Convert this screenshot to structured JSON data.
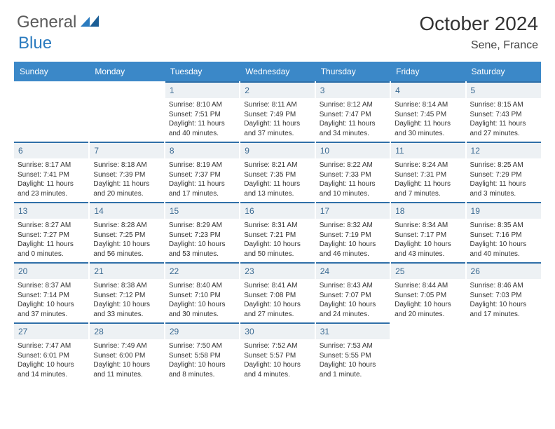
{
  "brand": {
    "word1": "General",
    "word2": "Blue"
  },
  "title": "October 2024",
  "location": "Sene, France",
  "colors": {
    "header_bg": "#3b88c8",
    "header_text": "#ffffff",
    "date_bg": "#edf1f4",
    "date_text": "#3b6a92",
    "date_border_top": "#2f6fa8",
    "body_text": "#333333",
    "logo_gray": "#5b5b5b",
    "logo_blue": "#2b7bbf"
  },
  "day_headers": [
    "Sunday",
    "Monday",
    "Tuesday",
    "Wednesday",
    "Thursday",
    "Friday",
    "Saturday"
  ],
  "weeks": [
    [
      {
        "empty": true
      },
      {
        "empty": true
      },
      {
        "date": "1",
        "sunrise": "8:10 AM",
        "sunset": "7:51 PM",
        "daylight": "11 hours and 40 minutes."
      },
      {
        "date": "2",
        "sunrise": "8:11 AM",
        "sunset": "7:49 PM",
        "daylight": "11 hours and 37 minutes."
      },
      {
        "date": "3",
        "sunrise": "8:12 AM",
        "sunset": "7:47 PM",
        "daylight": "11 hours and 34 minutes."
      },
      {
        "date": "4",
        "sunrise": "8:14 AM",
        "sunset": "7:45 PM",
        "daylight": "11 hours and 30 minutes."
      },
      {
        "date": "5",
        "sunrise": "8:15 AM",
        "sunset": "7:43 PM",
        "daylight": "11 hours and 27 minutes."
      }
    ],
    [
      {
        "date": "6",
        "sunrise": "8:17 AM",
        "sunset": "7:41 PM",
        "daylight": "11 hours and 23 minutes."
      },
      {
        "date": "7",
        "sunrise": "8:18 AM",
        "sunset": "7:39 PM",
        "daylight": "11 hours and 20 minutes."
      },
      {
        "date": "8",
        "sunrise": "8:19 AM",
        "sunset": "7:37 PM",
        "daylight": "11 hours and 17 minutes."
      },
      {
        "date": "9",
        "sunrise": "8:21 AM",
        "sunset": "7:35 PM",
        "daylight": "11 hours and 13 minutes."
      },
      {
        "date": "10",
        "sunrise": "8:22 AM",
        "sunset": "7:33 PM",
        "daylight": "11 hours and 10 minutes."
      },
      {
        "date": "11",
        "sunrise": "8:24 AM",
        "sunset": "7:31 PM",
        "daylight": "11 hours and 7 minutes."
      },
      {
        "date": "12",
        "sunrise": "8:25 AM",
        "sunset": "7:29 PM",
        "daylight": "11 hours and 3 minutes."
      }
    ],
    [
      {
        "date": "13",
        "sunrise": "8:27 AM",
        "sunset": "7:27 PM",
        "daylight": "11 hours and 0 minutes."
      },
      {
        "date": "14",
        "sunrise": "8:28 AM",
        "sunset": "7:25 PM",
        "daylight": "10 hours and 56 minutes."
      },
      {
        "date": "15",
        "sunrise": "8:29 AM",
        "sunset": "7:23 PM",
        "daylight": "10 hours and 53 minutes."
      },
      {
        "date": "16",
        "sunrise": "8:31 AM",
        "sunset": "7:21 PM",
        "daylight": "10 hours and 50 minutes."
      },
      {
        "date": "17",
        "sunrise": "8:32 AM",
        "sunset": "7:19 PM",
        "daylight": "10 hours and 46 minutes."
      },
      {
        "date": "18",
        "sunrise": "8:34 AM",
        "sunset": "7:17 PM",
        "daylight": "10 hours and 43 minutes."
      },
      {
        "date": "19",
        "sunrise": "8:35 AM",
        "sunset": "7:16 PM",
        "daylight": "10 hours and 40 minutes."
      }
    ],
    [
      {
        "date": "20",
        "sunrise": "8:37 AM",
        "sunset": "7:14 PM",
        "daylight": "10 hours and 37 minutes."
      },
      {
        "date": "21",
        "sunrise": "8:38 AM",
        "sunset": "7:12 PM",
        "daylight": "10 hours and 33 minutes."
      },
      {
        "date": "22",
        "sunrise": "8:40 AM",
        "sunset": "7:10 PM",
        "daylight": "10 hours and 30 minutes."
      },
      {
        "date": "23",
        "sunrise": "8:41 AM",
        "sunset": "7:08 PM",
        "daylight": "10 hours and 27 minutes."
      },
      {
        "date": "24",
        "sunrise": "8:43 AM",
        "sunset": "7:07 PM",
        "daylight": "10 hours and 24 minutes."
      },
      {
        "date": "25",
        "sunrise": "8:44 AM",
        "sunset": "7:05 PM",
        "daylight": "10 hours and 20 minutes."
      },
      {
        "date": "26",
        "sunrise": "8:46 AM",
        "sunset": "7:03 PM",
        "daylight": "10 hours and 17 minutes."
      }
    ],
    [
      {
        "date": "27",
        "sunrise": "7:47 AM",
        "sunset": "6:01 PM",
        "daylight": "10 hours and 14 minutes."
      },
      {
        "date": "28",
        "sunrise": "7:49 AM",
        "sunset": "6:00 PM",
        "daylight": "10 hours and 11 minutes."
      },
      {
        "date": "29",
        "sunrise": "7:50 AM",
        "sunset": "5:58 PM",
        "daylight": "10 hours and 8 minutes."
      },
      {
        "date": "30",
        "sunrise": "7:52 AM",
        "sunset": "5:57 PM",
        "daylight": "10 hours and 4 minutes."
      },
      {
        "date": "31",
        "sunrise": "7:53 AM",
        "sunset": "5:55 PM",
        "daylight": "10 hours and 1 minute."
      },
      {
        "empty": true
      },
      {
        "empty": true
      }
    ]
  ],
  "labels": {
    "sunrise": "Sunrise:",
    "sunset": "Sunset:",
    "daylight": "Daylight:"
  }
}
